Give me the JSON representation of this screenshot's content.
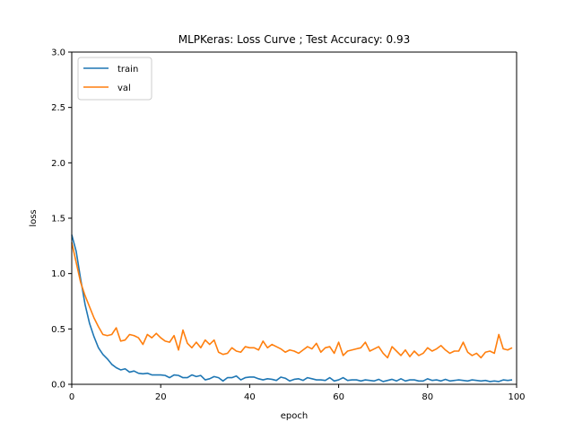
{
  "chart_data": {
    "type": "line",
    "title": "MLPKeras: Loss Curve ; Test Accuracy: 0.93",
    "xlabel": "epoch",
    "ylabel": "loss",
    "xlim": [
      0,
      100
    ],
    "ylim": [
      0,
      3.0
    ],
    "xticks": [
      "0",
      "20",
      "40",
      "60",
      "80",
      "100"
    ],
    "yticks": [
      "0.0",
      "0.5",
      "1.0",
      "1.5",
      "2.0",
      "2.5",
      "3.0"
    ],
    "legend_position": "upper-left",
    "grid": false,
    "series": [
      {
        "name": "train",
        "color": "#1f77b4",
        "x": [
          0,
          1,
          2,
          3,
          4,
          5,
          6,
          7,
          8,
          9,
          10,
          11,
          12,
          13,
          14,
          15,
          16,
          17,
          18,
          19,
          20,
          21,
          22,
          23,
          24,
          25,
          26,
          27,
          28,
          29,
          30,
          31,
          32,
          33,
          34,
          35,
          36,
          37,
          38,
          39,
          40,
          41,
          42,
          43,
          44,
          45,
          46,
          47,
          48,
          49,
          50,
          51,
          52,
          53,
          54,
          55,
          56,
          57,
          58,
          59,
          60,
          61,
          62,
          63,
          64,
          65,
          66,
          67,
          68,
          69,
          70,
          71,
          72,
          73,
          74,
          75,
          76,
          77,
          78,
          79,
          80,
          81,
          82,
          83,
          84,
          85,
          86,
          87,
          88,
          89,
          90,
          91,
          92,
          93,
          94,
          95,
          96,
          97,
          98,
          99
        ],
        "values": [
          1.35,
          1.2,
          0.95,
          0.72,
          0.55,
          0.43,
          0.33,
          0.27,
          0.23,
          0.18,
          0.15,
          0.13,
          0.14,
          0.11,
          0.12,
          0.1,
          0.095,
          0.1,
          0.085,
          0.085,
          0.085,
          0.08,
          0.06,
          0.085,
          0.08,
          0.06,
          0.06,
          0.085,
          0.07,
          0.08,
          0.04,
          0.05,
          0.07,
          0.06,
          0.03,
          0.06,
          0.06,
          0.075,
          0.04,
          0.06,
          0.065,
          0.065,
          0.05,
          0.04,
          0.05,
          0.045,
          0.035,
          0.065,
          0.055,
          0.03,
          0.045,
          0.05,
          0.035,
          0.06,
          0.05,
          0.04,
          0.04,
          0.035,
          0.06,
          0.03,
          0.04,
          0.06,
          0.035,
          0.04,
          0.04,
          0.03,
          0.04,
          0.035,
          0.03,
          0.045,
          0.025,
          0.035,
          0.045,
          0.03,
          0.05,
          0.03,
          0.04,
          0.04,
          0.03,
          0.03,
          0.05,
          0.035,
          0.04,
          0.03,
          0.045,
          0.03,
          0.035,
          0.04,
          0.035,
          0.03,
          0.04,
          0.035,
          0.03,
          0.035,
          0.025,
          0.03,
          0.025,
          0.04,
          0.035,
          0.04
        ]
      },
      {
        "name": "val",
        "color": "#ff7f0e",
        "x": [
          0,
          1,
          2,
          3,
          4,
          5,
          6,
          7,
          8,
          9,
          10,
          11,
          12,
          13,
          14,
          15,
          16,
          17,
          18,
          19,
          20,
          21,
          22,
          23,
          24,
          25,
          26,
          27,
          28,
          29,
          30,
          31,
          32,
          33,
          34,
          35,
          36,
          37,
          38,
          39,
          40,
          41,
          42,
          43,
          44,
          45,
          46,
          47,
          48,
          49,
          50,
          51,
          52,
          53,
          54,
          55,
          56,
          57,
          58,
          59,
          60,
          61,
          62,
          63,
          64,
          65,
          66,
          67,
          68,
          69,
          70,
          71,
          72,
          73,
          74,
          75,
          76,
          77,
          78,
          79,
          80,
          81,
          82,
          83,
          84,
          85,
          86,
          87,
          88,
          89,
          90,
          91,
          92,
          93,
          94,
          95,
          96,
          97,
          98,
          99
        ],
        "values": [
          1.28,
          1.1,
          0.92,
          0.8,
          0.7,
          0.6,
          0.52,
          0.45,
          0.44,
          0.45,
          0.51,
          0.39,
          0.4,
          0.45,
          0.44,
          0.42,
          0.36,
          0.45,
          0.42,
          0.46,
          0.42,
          0.39,
          0.38,
          0.44,
          0.31,
          0.49,
          0.37,
          0.33,
          0.38,
          0.33,
          0.4,
          0.36,
          0.4,
          0.29,
          0.27,
          0.28,
          0.33,
          0.3,
          0.29,
          0.34,
          0.33,
          0.33,
          0.31,
          0.39,
          0.33,
          0.36,
          0.34,
          0.32,
          0.29,
          0.31,
          0.3,
          0.28,
          0.31,
          0.34,
          0.32,
          0.37,
          0.29,
          0.33,
          0.34,
          0.28,
          0.38,
          0.26,
          0.3,
          0.31,
          0.32,
          0.33,
          0.38,
          0.3,
          0.32,
          0.34,
          0.28,
          0.24,
          0.34,
          0.3,
          0.26,
          0.31,
          0.25,
          0.3,
          0.26,
          0.28,
          0.33,
          0.3,
          0.32,
          0.35,
          0.31,
          0.28,
          0.3,
          0.3,
          0.38,
          0.29,
          0.26,
          0.28,
          0.24,
          0.29,
          0.3,
          0.28,
          0.45,
          0.32,
          0.31,
          0.33
        ]
      }
    ]
  }
}
